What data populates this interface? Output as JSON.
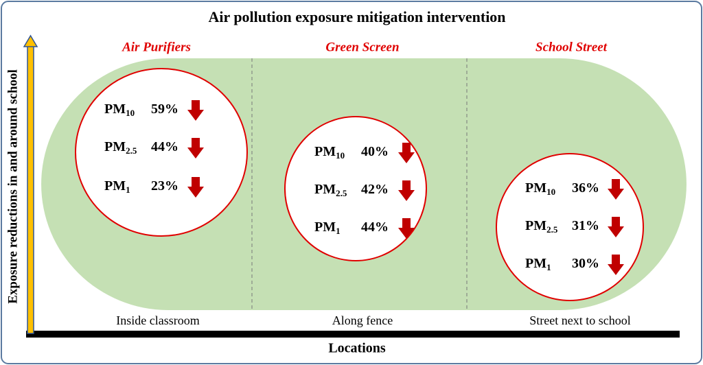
{
  "title": "Air pollution exposure mitigation  intervention",
  "y_axis_label": "Exposure reductions in and around school",
  "x_axis_label": "Locations",
  "sections": [
    {
      "heading": "Air Purifiers",
      "location": "Inside classroom",
      "items": [
        {
          "pollutant": "PM",
          "subscript": "10",
          "value": "59%"
        },
        {
          "pollutant": "PM",
          "subscript": "2.5",
          "value": "44%"
        },
        {
          "pollutant": "PM",
          "subscript": "1",
          "value": "23%"
        }
      ]
    },
    {
      "heading": "Green Screen",
      "location": "Along fence",
      "items": [
        {
          "pollutant": "PM",
          "subscript": "10",
          "value": "40%"
        },
        {
          "pollutant": "PM",
          "subscript": "2.5",
          "value": "42%"
        },
        {
          "pollutant": "PM",
          "subscript": "1",
          "value": "44%"
        }
      ]
    },
    {
      "heading": "School Street",
      "location": "Street next to school",
      "items": [
        {
          "pollutant": "PM",
          "subscript": "10",
          "value": "36%"
        },
        {
          "pollutant": "PM",
          "subscript": "2.5",
          "value": "31%"
        },
        {
          "pollutant": "PM",
          "subscript": "1",
          "value": "30%"
        }
      ]
    }
  ]
}
